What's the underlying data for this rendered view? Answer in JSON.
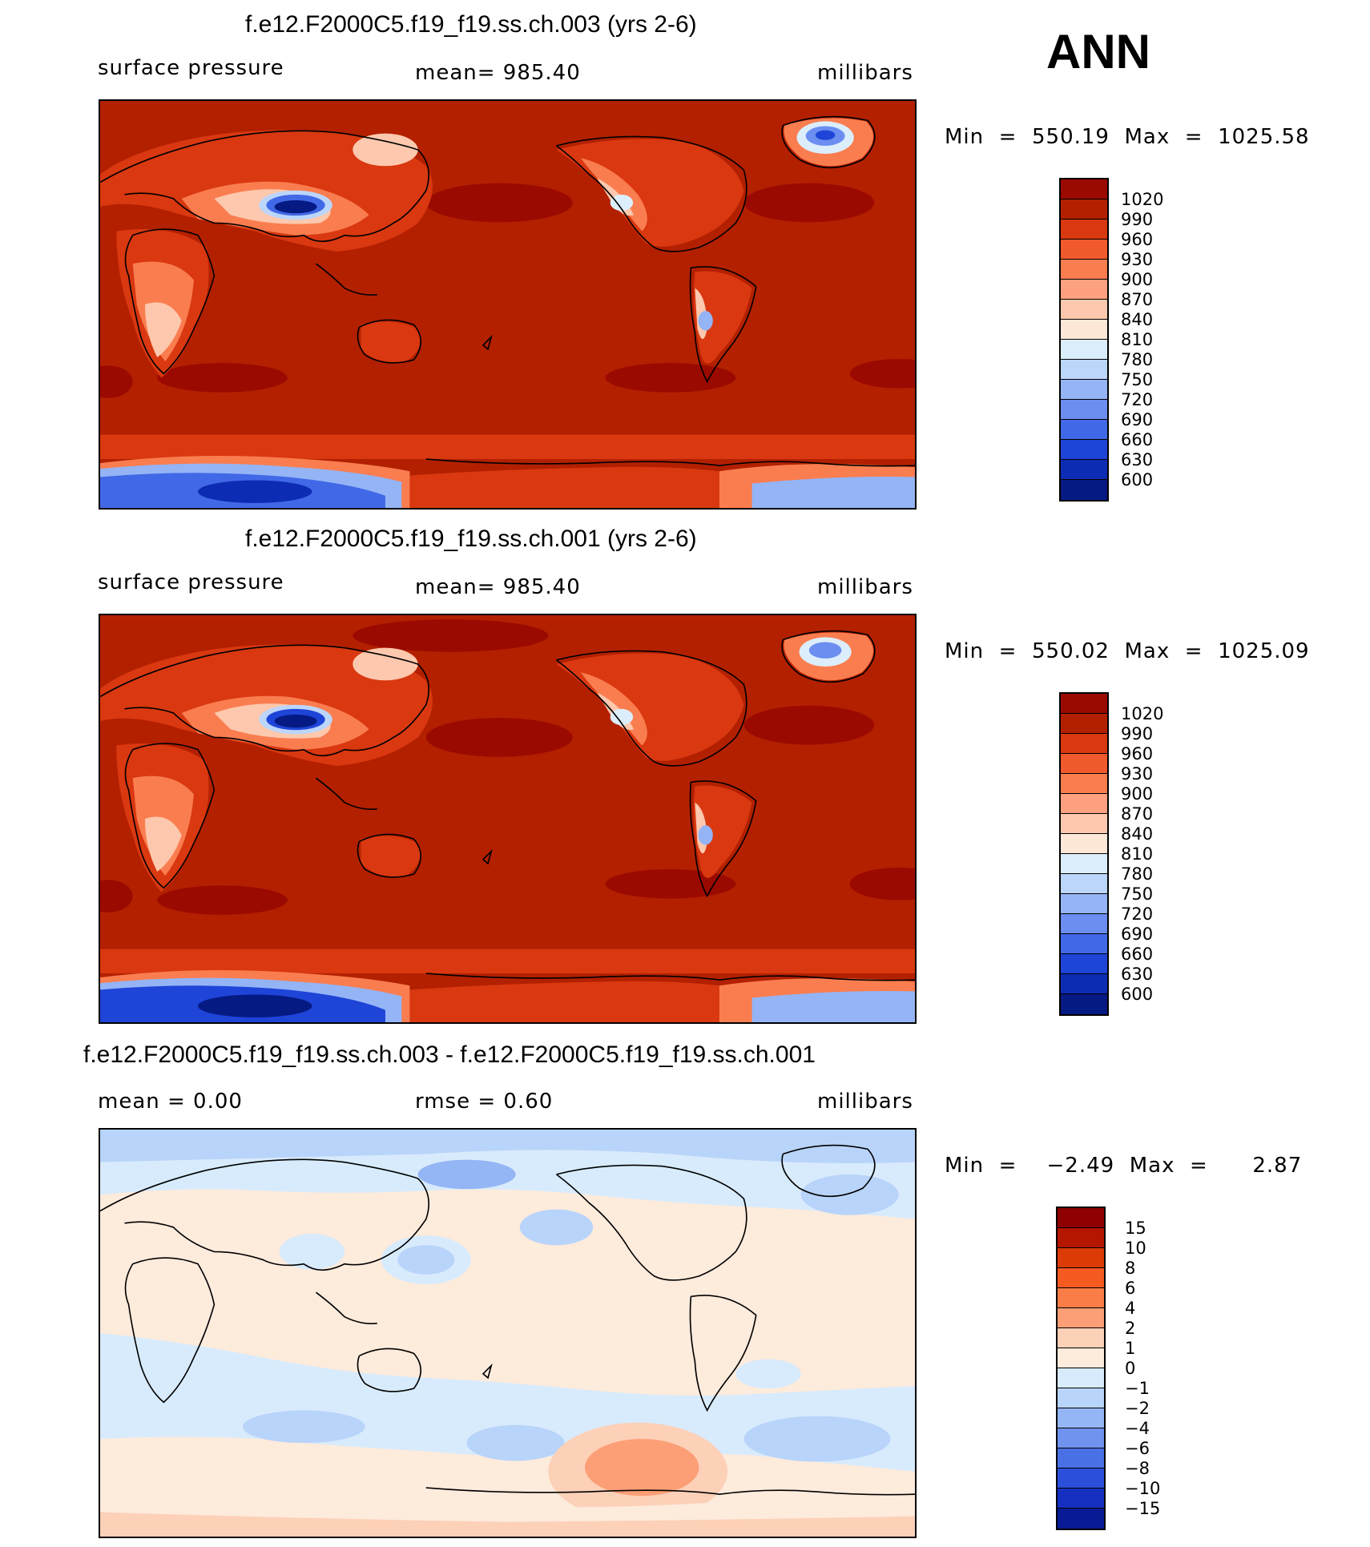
{
  "season": "ANN",
  "colors": {
    "land_line": "#000000",
    "abs_scale": [
      "#9b0a00",
      "#b32000",
      "#d93810",
      "#f05a2d",
      "#fa7d50",
      "#fda180",
      "#fdc8ad",
      "#fde8d8",
      "#dceefc",
      "#bcd6fb",
      "#94b4f5",
      "#6b8ef0",
      "#4168e6",
      "#1e44d8",
      "#0d2cb4",
      "#051a82"
    ],
    "diff_scale": [
      "#8f0000",
      "#b41600",
      "#dc3a06",
      "#f55a20",
      "#fa7c46",
      "#fc9f76",
      "#fdd0b8",
      "#fdebdc",
      "#d8ebfc",
      "#b9d4fa",
      "#95b6f5",
      "#6f93ef",
      "#4a70e6",
      "#2b4fdb",
      "#1530c0",
      "#081b94"
    ]
  },
  "panels": [
    {
      "title": "f.e12.F2000C5.f19_f19.ss.ch.003 (yrs 2-6)",
      "left_label": "surface pressure",
      "center_label": "mean=  985.40",
      "right_label": "millibars",
      "min_max": "Min  =  550.19  Max  =  1025.58",
      "colorbar": [
        "1020",
        "990",
        "960",
        "930",
        "900",
        "870",
        "840",
        "810",
        "780",
        "750",
        "720",
        "690",
        "660",
        "630",
        "600"
      ]
    },
    {
      "title": "f.e12.F2000C5.f19_f19.ss.ch.001 (yrs 2-6)",
      "left_label": "surface pressure",
      "center_label": "mean=  985.40",
      "right_label": "millibars",
      "min_max": "Min  =  550.02  Max  =  1025.09",
      "colorbar": [
        "1020",
        "990",
        "960",
        "930",
        "900",
        "870",
        "840",
        "810",
        "780",
        "750",
        "720",
        "690",
        "660",
        "630",
        "600"
      ]
    },
    {
      "title": "f.e12.F2000C5.f19_f19.ss.ch.003 - f.e12.F2000C5.f19_f19.ss.ch.001",
      "left_label": "mean  =      0.00",
      "center_label": "rmse  =      0.60",
      "right_label": "millibars",
      "min_max": "Min  =    −2.49  Max  =      2.87",
      "colorbar": [
        "15",
        "10",
        "8",
        "6",
        "4",
        "2",
        "1",
        "0",
        "−1",
        "−2",
        "−4",
        "−6",
        "−8",
        "−10",
        "−15"
      ]
    }
  ]
}
